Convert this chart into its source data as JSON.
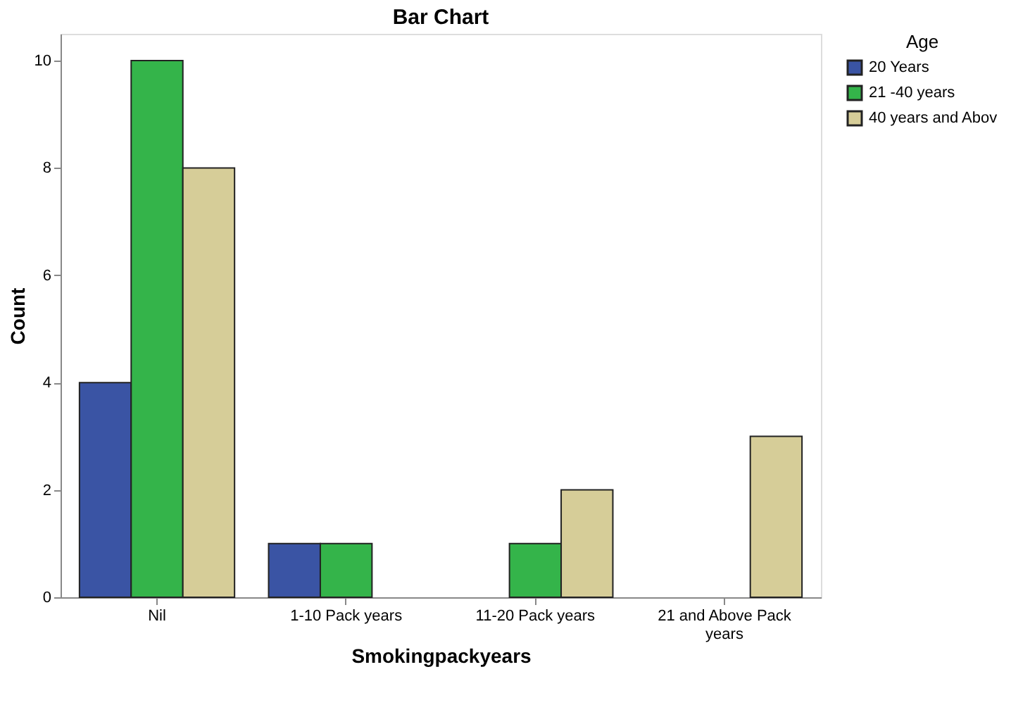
{
  "chart_data": {
    "type": "bar",
    "title": "Bar Chart",
    "xlabel": "Smokingpackyears",
    "ylabel": "Count",
    "legend_title": "Age",
    "categories": [
      "Nil",
      "1-10 Pack years",
      "11-20 Pack years",
      "21 and Above Pack years"
    ],
    "series": [
      {
        "name": "20 Years",
        "color": "#3a54a4",
        "values": [
          4,
          1,
          null,
          null
        ]
      },
      {
        "name": "21 -40 years",
        "color": "#34b44a",
        "values": [
          10,
          1,
          1,
          null
        ]
      },
      {
        "name": "40 years and Abov",
        "color": "#d6cd98",
        "values": [
          8,
          null,
          2,
          3
        ]
      }
    ],
    "ylim": [
      0,
      10.5
    ],
    "yticks": [
      0,
      2,
      4,
      6,
      8,
      10
    ],
    "grid": false,
    "legend": "top right"
  }
}
